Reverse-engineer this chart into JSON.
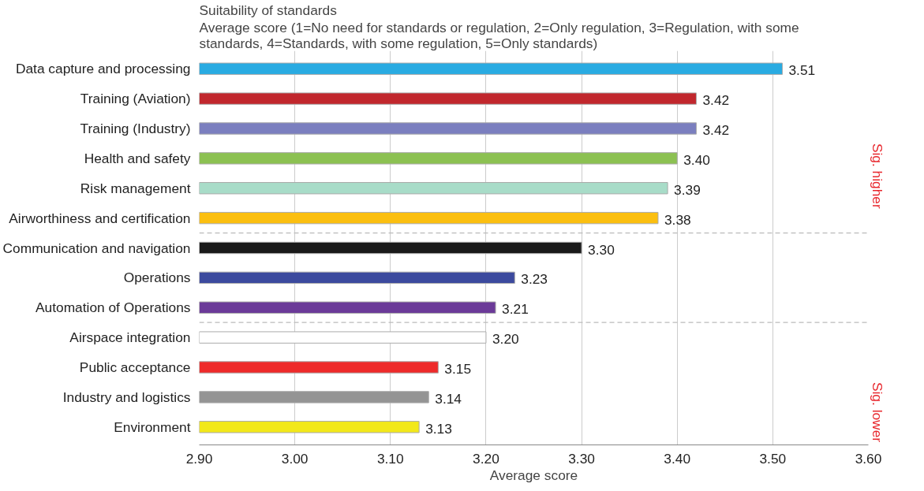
{
  "chart_data": {
    "type": "bar",
    "orientation": "horizontal",
    "title": "Suitability of standards",
    "subtitle": "Average score (1=No need for standards or regulation, 2=Only regulation, 3=Regulation, with some standards, 4=Standards, with some regulation, 5=Only standards)",
    "xlabel": "Average score",
    "categories": [
      "Data capture and processing",
      "Training (Aviation)",
      "Training (Industry)",
      "Health and safety",
      "Risk management",
      "Airworthiness and certification",
      "Communication and navigation",
      "Operations",
      "Automation of Operations",
      "Airspace integration",
      "Public acceptance",
      "Industry and logistics",
      "Environment"
    ],
    "values": [
      3.51,
      3.42,
      3.42,
      3.4,
      3.39,
      3.38,
      3.3,
      3.23,
      3.21,
      3.2,
      3.15,
      3.14,
      3.13
    ],
    "value_labels": [
      "3.51",
      "3.42",
      "3.42",
      "3.40",
      "3.39",
      "3.38",
      "3.30",
      "3.23",
      "3.21",
      "3.20",
      "3.15",
      "3.14",
      "3.13"
    ],
    "colors": [
      "#29abe2",
      "#c1272d",
      "#7b7fbf",
      "#8cc152",
      "#a8dcc8",
      "#fbbf10",
      "#1a1a1a",
      "#3c4a9e",
      "#6b3a98",
      "#ffffff",
      "#ee2a2a",
      "#949494",
      "#f2e81a"
    ],
    "xlim": [
      2.9,
      3.6
    ],
    "xticks": [
      {
        "value": 2.9,
        "label": "2.90"
      },
      {
        "value": 3.0,
        "label": "3.00"
      },
      {
        "value": 3.1,
        "label": "3.10"
      },
      {
        "value": 3.2,
        "label": "3.20"
      },
      {
        "value": 3.3,
        "label": "3.30"
      },
      {
        "value": 3.4,
        "label": "3.40"
      },
      {
        "value": 3.5,
        "label": "3.50"
      },
      {
        "value": 3.6,
        "label": "3.60"
      }
    ],
    "grid": "x",
    "annotations": [
      "Sig. higher",
      "Sig. lower"
    ]
  }
}
